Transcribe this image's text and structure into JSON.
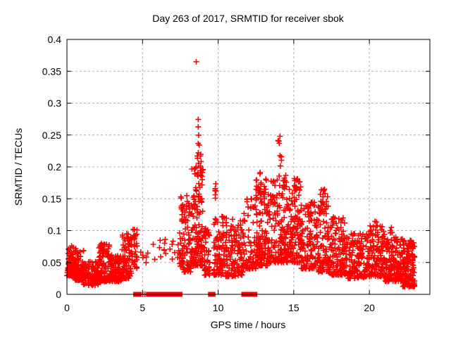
{
  "window": {
    "background": "#ffffff"
  },
  "chart_data": {
    "type": "scatter",
    "title": "Day 263 of 2017, SRMTID for receiver sbok",
    "xlabel": "GPS time / hours",
    "ylabel": "SRMTID / TECUs",
    "xlim": [
      0,
      24
    ],
    "ylim": [
      0,
      0.4
    ],
    "xticks": [
      [
        0,
        "0"
      ],
      [
        5,
        "5"
      ],
      [
        10,
        "10"
      ],
      [
        15,
        "15"
      ],
      [
        20,
        "20"
      ]
    ],
    "yticks": [
      [
        0,
        "0"
      ],
      [
        0.05,
        "0.05"
      ],
      [
        0.1,
        "0.1"
      ],
      [
        0.15,
        "0.15"
      ],
      [
        0.2,
        "0.2"
      ],
      [
        0.25,
        "0.25"
      ],
      [
        0.3,
        "0.3"
      ],
      [
        0.35,
        "0.35"
      ],
      [
        0.4,
        "0.4"
      ]
    ],
    "grid": true,
    "grid_color": "#b0b0b0",
    "legend": false,
    "marker": "plus",
    "marker_color": "#ff0000",
    "axis_color": "#000000",
    "outlier_points": [
      [
        8.55,
        0.365
      ]
    ],
    "band_clusters": [
      {
        "x0": 0.0,
        "x1": 0.5,
        "n": 70,
        "ylo": 0.028,
        "yhi": 0.082,
        "p": 1.8
      },
      {
        "x0": 0.5,
        "x1": 1.1,
        "n": 80,
        "ylo": 0.022,
        "yhi": 0.072,
        "p": 1.8
      },
      {
        "x0": 1.1,
        "x1": 2.1,
        "n": 110,
        "ylo": 0.014,
        "yhi": 0.052,
        "p": 1.4
      },
      {
        "x0": 2.1,
        "x1": 2.8,
        "n": 90,
        "ylo": 0.02,
        "yhi": 0.08,
        "p": 1.9
      },
      {
        "x0": 2.8,
        "x1": 3.6,
        "n": 90,
        "ylo": 0.02,
        "yhi": 0.062,
        "p": 1.5
      },
      {
        "x0": 3.6,
        "x1": 4.3,
        "n": 85,
        "ylo": 0.025,
        "yhi": 0.095,
        "p": 1.8
      },
      {
        "x0": 4.3,
        "x1": 4.65,
        "n": 30,
        "ylo": 0.04,
        "yhi": 0.107,
        "p": 1.4
      },
      {
        "x0": 4.85,
        "x1": 5.35,
        "n": 6,
        "ylo": 0.048,
        "yhi": 0.068,
        "p": 1.0
      },
      {
        "x0": 5.6,
        "x1": 6.6,
        "n": 10,
        "ylo": 0.052,
        "yhi": 0.09,
        "p": 1.2
      },
      {
        "x0": 6.8,
        "x1": 7.45,
        "n": 9,
        "ylo": 0.05,
        "yhi": 0.085,
        "p": 1.2
      },
      {
        "x0": 7.45,
        "x1": 8.2,
        "n": 95,
        "ylo": 0.035,
        "yhi": 0.155,
        "p": 1.9
      },
      {
        "x0": 8.2,
        "x1": 9.0,
        "n": 130,
        "ylo": 0.045,
        "yhi": 0.2,
        "p": 2.1
      },
      {
        "x0": 9.0,
        "x1": 9.45,
        "n": 50,
        "ylo": 0.03,
        "yhi": 0.155,
        "p": 1.9
      },
      {
        "x0": 9.7,
        "x1": 10.5,
        "n": 90,
        "ylo": 0.03,
        "yhi": 0.125,
        "p": 1.7
      },
      {
        "x0": 10.5,
        "x1": 11.65,
        "n": 115,
        "ylo": 0.028,
        "yhi": 0.12,
        "p": 1.7
      },
      {
        "x0": 11.65,
        "x1": 12.5,
        "n": 70,
        "ylo": 0.04,
        "yhi": 0.155,
        "p": 1.8
      },
      {
        "x0": 12.5,
        "x1": 13.3,
        "n": 120,
        "ylo": 0.045,
        "yhi": 0.185,
        "p": 1.9
      },
      {
        "x0": 13.3,
        "x1": 14.7,
        "n": 170,
        "ylo": 0.05,
        "yhi": 0.185,
        "p": 1.8
      },
      {
        "x0": 14.7,
        "x1": 15.5,
        "n": 110,
        "ylo": 0.05,
        "yhi": 0.185,
        "p": 1.9
      },
      {
        "x0": 15.5,
        "x1": 16.6,
        "n": 120,
        "ylo": 0.04,
        "yhi": 0.145,
        "p": 1.7
      },
      {
        "x0": 16.6,
        "x1": 17.3,
        "n": 90,
        "ylo": 0.035,
        "yhi": 0.165,
        "p": 1.9
      },
      {
        "x0": 17.3,
        "x1": 18.5,
        "n": 120,
        "ylo": 0.03,
        "yhi": 0.12,
        "p": 1.6
      },
      {
        "x0": 18.5,
        "x1": 19.8,
        "n": 130,
        "ylo": 0.025,
        "yhi": 0.095,
        "p": 1.5
      },
      {
        "x0": 19.8,
        "x1": 21.0,
        "n": 130,
        "ylo": 0.028,
        "yhi": 0.11,
        "p": 1.8
      },
      {
        "x0": 21.0,
        "x1": 22.3,
        "n": 150,
        "ylo": 0.02,
        "yhi": 0.09,
        "p": 1.6
      },
      {
        "x0": 22.2,
        "x1": 23.0,
        "n": 140,
        "ylo": 0.012,
        "yhi": 0.085,
        "p": 1.4
      }
    ],
    "spike_columns": [
      {
        "x0": 8.6,
        "x1": 8.75,
        "n": 9,
        "ylo": 0.2,
        "yhi": 0.278
      },
      {
        "x0": 8.8,
        "x1": 8.92,
        "n": 6,
        "ylo": 0.185,
        "yhi": 0.225
      },
      {
        "x0": 9.75,
        "x1": 9.9,
        "n": 7,
        "ylo": 0.15,
        "yhi": 0.19
      },
      {
        "x0": 12.62,
        "x1": 12.8,
        "n": 8,
        "ylo": 0.15,
        "yhi": 0.198
      },
      {
        "x0": 13.95,
        "x1": 14.2,
        "n": 10,
        "ylo": 0.185,
        "yhi": 0.257
      },
      {
        "x0": 14.35,
        "x1": 14.55,
        "n": 6,
        "ylo": 0.16,
        "yhi": 0.19
      },
      {
        "x0": 15.05,
        "x1": 15.35,
        "n": 7,
        "ylo": 0.16,
        "yhi": 0.19
      },
      {
        "x0": 16.75,
        "x1": 17.05,
        "n": 8,
        "ylo": 0.125,
        "yhi": 0.168
      },
      {
        "x0": 17.5,
        "x1": 17.7,
        "n": 5,
        "ylo": 0.105,
        "yhi": 0.128
      },
      {
        "x0": 3.95,
        "x1": 4.12,
        "n": 5,
        "ylo": 0.078,
        "yhi": 0.096
      },
      {
        "x0": 2.35,
        "x1": 2.52,
        "n": 6,
        "ylo": 0.062,
        "yhi": 0.08
      },
      {
        "x0": 20.3,
        "x1": 20.6,
        "n": 6,
        "ylo": 0.09,
        "yhi": 0.115
      },
      {
        "x0": 21.3,
        "x1": 21.5,
        "n": 4,
        "ylo": 0.088,
        "yhi": 0.105
      }
    ],
    "zero_runs": [
      [
        4.52,
        4.8
      ],
      [
        5.37,
        7.5
      ],
      [
        9.47,
        9.68
      ],
      [
        11.67,
        11.9
      ],
      [
        12.08,
        12.45
      ]
    ],
    "zero_singles": [
      5.02,
      5.16
    ],
    "seed": 1234567
  }
}
